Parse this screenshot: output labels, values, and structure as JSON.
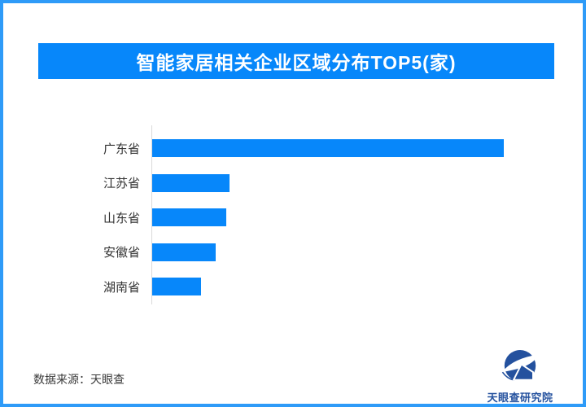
{
  "page": {
    "background": "#ffffff",
    "border_color": "#2e9bf8"
  },
  "header": {
    "title": "智能家居相关企业区域分布TOP5(家)",
    "banner_color": "#0787fa",
    "title_color": "#ffffff"
  },
  "chart_data": {
    "type": "bar",
    "orientation": "horizontal",
    "title": "智能家居相关企业区域分布TOP5(家)",
    "categories": [
      "广东省",
      "江苏省",
      "山东省",
      "安徽省",
      "湖南省"
    ],
    "values": [
      100,
      22,
      21,
      18,
      14
    ],
    "unit": "relative_percent_of_max (no numeric labels shown in chart)",
    "xlabel": "",
    "ylabel": "",
    "grid": false,
    "legend": false,
    "bar_color": "#0787fa",
    "axis_color": "#d9d9d9",
    "label_color": "#333333"
  },
  "footer": {
    "source_text": "数据来源：天眼查",
    "logo_text": "天眼查研究院",
    "logo_color": "#24519e"
  }
}
